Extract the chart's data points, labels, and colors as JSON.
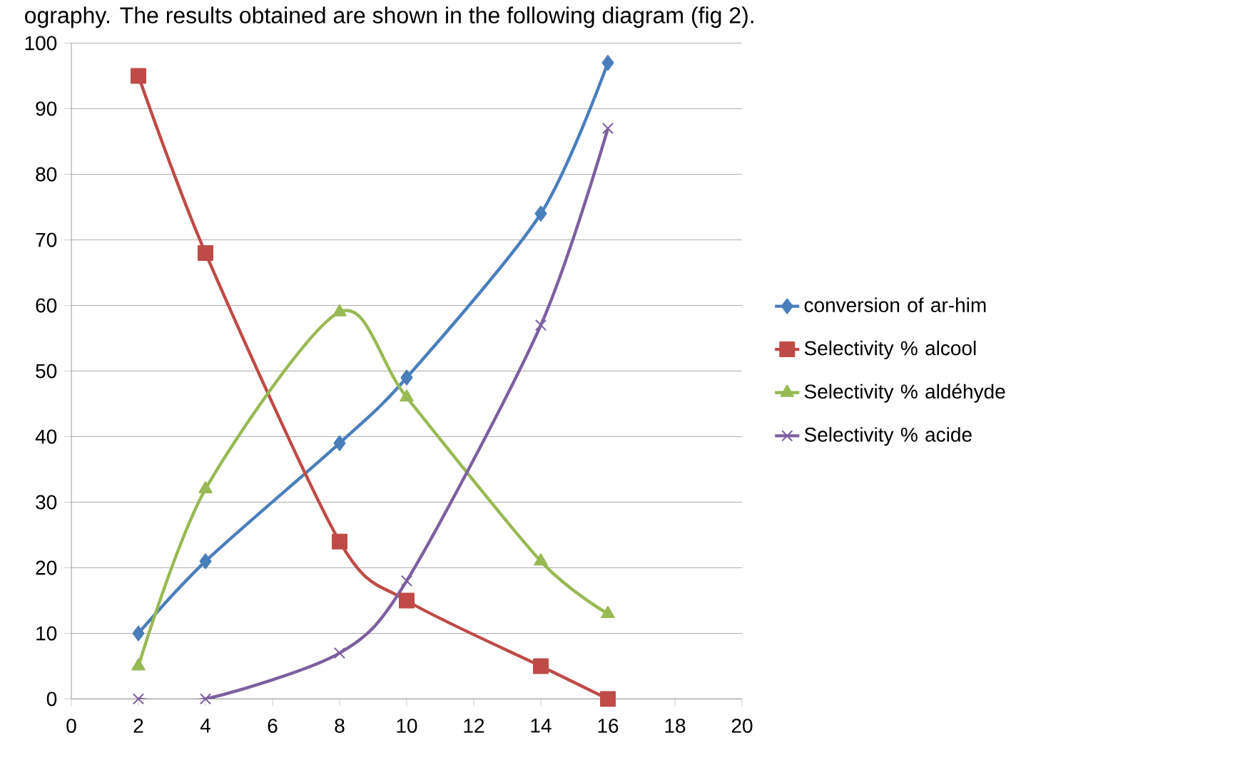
{
  "chart_data": {
    "type": "line",
    "annotations": [
      "ography. The results obtained are shown in the following diagram (fig 2)."
    ],
    "x": [
      2,
      4,
      8,
      10,
      14,
      16
    ],
    "series": [
      {
        "name": "conversion of ar-him",
        "color": "#4a7ebb",
        "marker": "diamond",
        "values": [
          10,
          21,
          39,
          49,
          74,
          97
        ]
      },
      {
        "name": "Selectivity % alcool",
        "color": "#be4b48",
        "marker": "square",
        "values": [
          95,
          68,
          24,
          15,
          5,
          0
        ]
      },
      {
        "name": "Selectivity % aldéhyde",
        "color": "#98b954",
        "marker": "triangle",
        "values": [
          5,
          32,
          59,
          46,
          21,
          13
        ]
      },
      {
        "name": "Selectivity % acide",
        "color": "#7d60a0",
        "marker": "cross",
        "values": [
          0,
          0,
          7,
          18,
          57,
          87
        ]
      }
    ],
    "xlim": [
      0,
      20
    ],
    "xticks": [
      0,
      2,
      4,
      6,
      8,
      10,
      12,
      14,
      16,
      18,
      20
    ],
    "ylim": [
      0,
      100
    ],
    "yticks": [
      0,
      10,
      20,
      30,
      40,
      50,
      60,
      70,
      80,
      90,
      100
    ],
    "grid": "y",
    "legend": "right"
  }
}
